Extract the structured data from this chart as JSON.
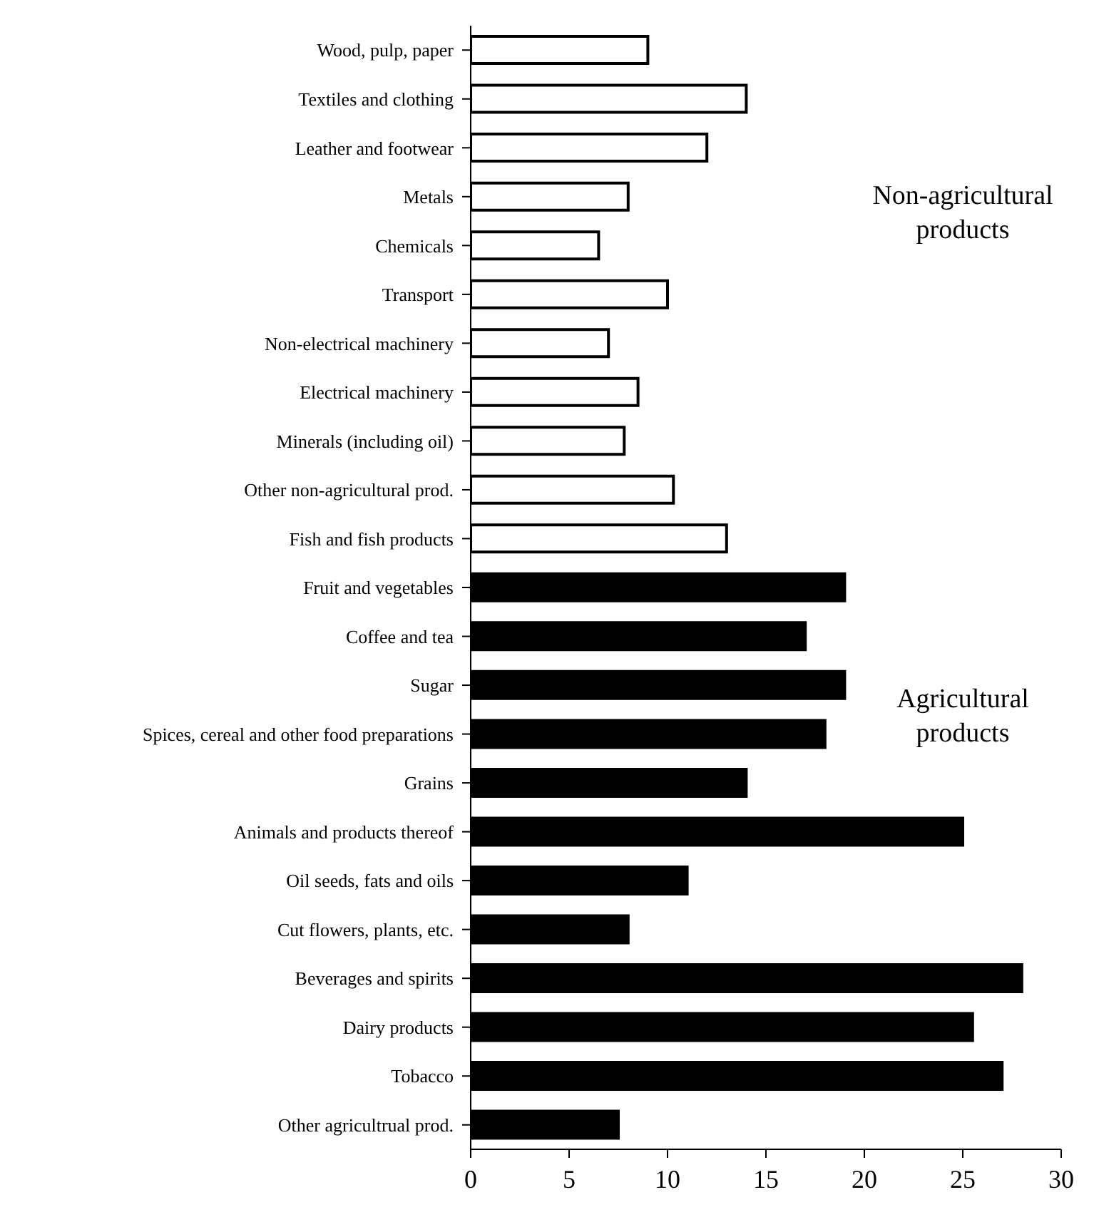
{
  "chart_data": {
    "type": "bar",
    "orientation": "horizontal",
    "categories": [
      "Wood, pulp, paper",
      "Textiles and clothing",
      "Leather and footwear",
      "Metals",
      "Chemicals",
      "Transport",
      "Non-electrical machinery",
      "Electrical machinery",
      "Minerals (including oil)",
      "Other non-agricultural prod.",
      "Fish and fish products",
      "Fruit and vegetables",
      "Coffee and tea",
      "Sugar",
      "Spices, cereal and other food preparations",
      "Grains",
      "Animals and products thereof",
      "Oil seeds, fats and oils",
      "Cut flowers, plants, etc.",
      "Beverages and spirits",
      "Dairy products",
      "Tobacco",
      "Other agricultrual prod."
    ],
    "values": [
      9,
      14,
      12,
      8,
      6.5,
      10,
      7,
      8.5,
      7.8,
      10.3,
      13,
      19,
      17,
      19,
      18,
      14,
      25,
      11,
      8,
      28,
      25.5,
      27,
      7.5
    ],
    "colors": [
      "#ffffff",
      "#ffffff",
      "#ffffff",
      "#ffffff",
      "#ffffff",
      "#ffffff",
      "#ffffff",
      "#ffffff",
      "#ffffff",
      "#ffffff",
      "#ffffff",
      "#000000",
      "#000000",
      "#000000",
      "#000000",
      "#000000",
      "#000000",
      "#000000",
      "#000000",
      "#000000",
      "#000000",
      "#000000",
      "#000000"
    ],
    "xlim": [
      0,
      30
    ],
    "xticks": [
      0,
      5,
      10,
      15,
      20,
      25,
      30
    ],
    "annotations": [
      "Non-agricultural products",
      "Agricultural products"
    ],
    "grid": false,
    "legend": false
  }
}
